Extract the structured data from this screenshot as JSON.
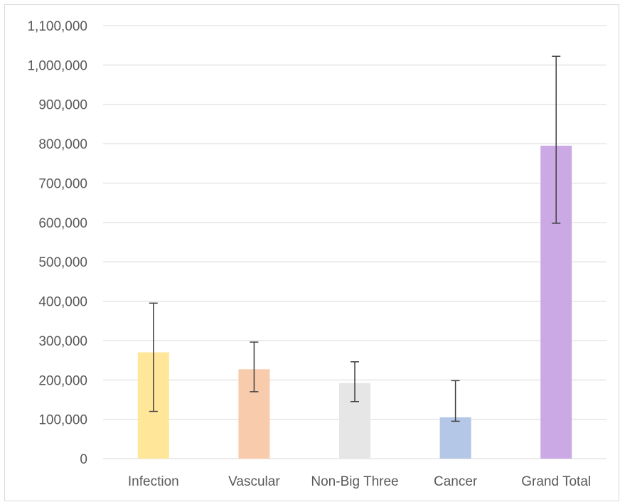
{
  "chart_data": {
    "type": "bar",
    "title": "",
    "xlabel": "",
    "ylabel": "",
    "ylim": [
      0,
      1100000
    ],
    "yticks": [
      0,
      100000,
      200000,
      300000,
      400000,
      500000,
      600000,
      700000,
      800000,
      900000,
      1000000,
      1100000
    ],
    "ytick_labels": [
      "0",
      "100,000",
      "200,000",
      "300,000",
      "400,000",
      "500,000",
      "600,000",
      "700,000",
      "800,000",
      "900,000",
      "1,000,000",
      "1,100,000"
    ],
    "grid": true,
    "legend": "none",
    "categories": [
      "Infection",
      "Vascular",
      "Non-Big Three",
      "Cancer",
      "Grand Total"
    ],
    "values": [
      270000,
      227000,
      192000,
      105000,
      795000
    ],
    "error_low": [
      120000,
      170000,
      145000,
      95000,
      598000
    ],
    "error_high": [
      395000,
      296000,
      246000,
      198000,
      1022000
    ],
    "colors": [
      "#ffe699",
      "#f8cbad",
      "#e7e6e6",
      "#b4c7e7",
      "#cba9e5"
    ]
  }
}
